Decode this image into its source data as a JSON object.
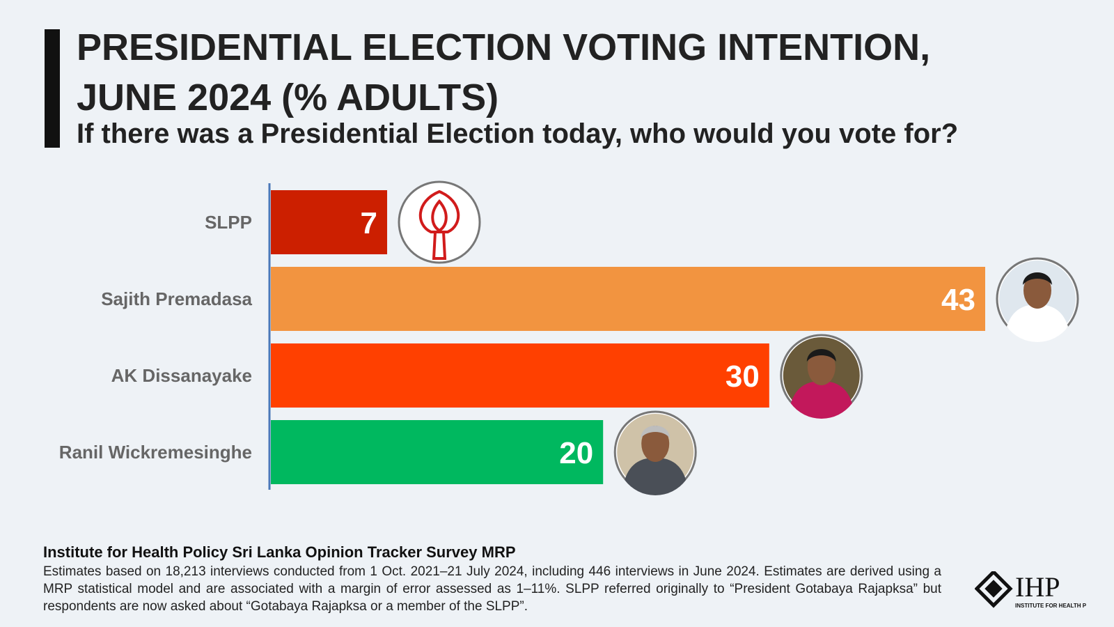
{
  "header": {
    "title": "PRESIDENTIAL ELECTION VOTING INTENTION, JUNE 2024 (% ADULTS)",
    "subtitle": "If there was a Presidential Election today, who would you vote for?"
  },
  "chart_data": {
    "type": "bar",
    "orientation": "horizontal",
    "categories": [
      "SLPP",
      "Sajith Premadasa",
      "AK Dissanayake",
      "Ranil Wickremesinghe"
    ],
    "values": [
      7,
      43,
      30,
      20
    ],
    "colors": [
      "#cc1f00",
      "#f29440",
      "#ff4000",
      "#00b85f"
    ],
    "icons": [
      "lotus-symbol-icon",
      "sajith-premadasa-portrait-icon",
      "ak-dissanayake-portrait-icon",
      "ranil-wickremesinghe-portrait-icon"
    ],
    "xlim": [
      0,
      43
    ],
    "grid": false,
    "data_labels": true,
    "title": "PRESIDENTIAL ELECTION VOTING INTENTION, JUNE 2024 (% ADULTS)",
    "xlabel": "",
    "ylabel": ""
  },
  "footer": {
    "source_title": "Institute for Health Policy Sri Lanka Opinion Tracker Survey MRP",
    "note": "Estimates based on 18,213 interviews conducted from 1 Oct. 2021–21 July 2024, including 446 interviews in June 2024. Estimates are derived using a MRP statistical model and are associated with a margin of error assessed as 1–11%. SLPP referred originally to “President Gotabaya Rajapksa” but respondents are now asked about “Gotabaya Rajapksa or a member of the SLPP”."
  },
  "logo": {
    "text": "IHP",
    "tagline": "INSTITUTE FOR HEALTH POLICY"
  }
}
